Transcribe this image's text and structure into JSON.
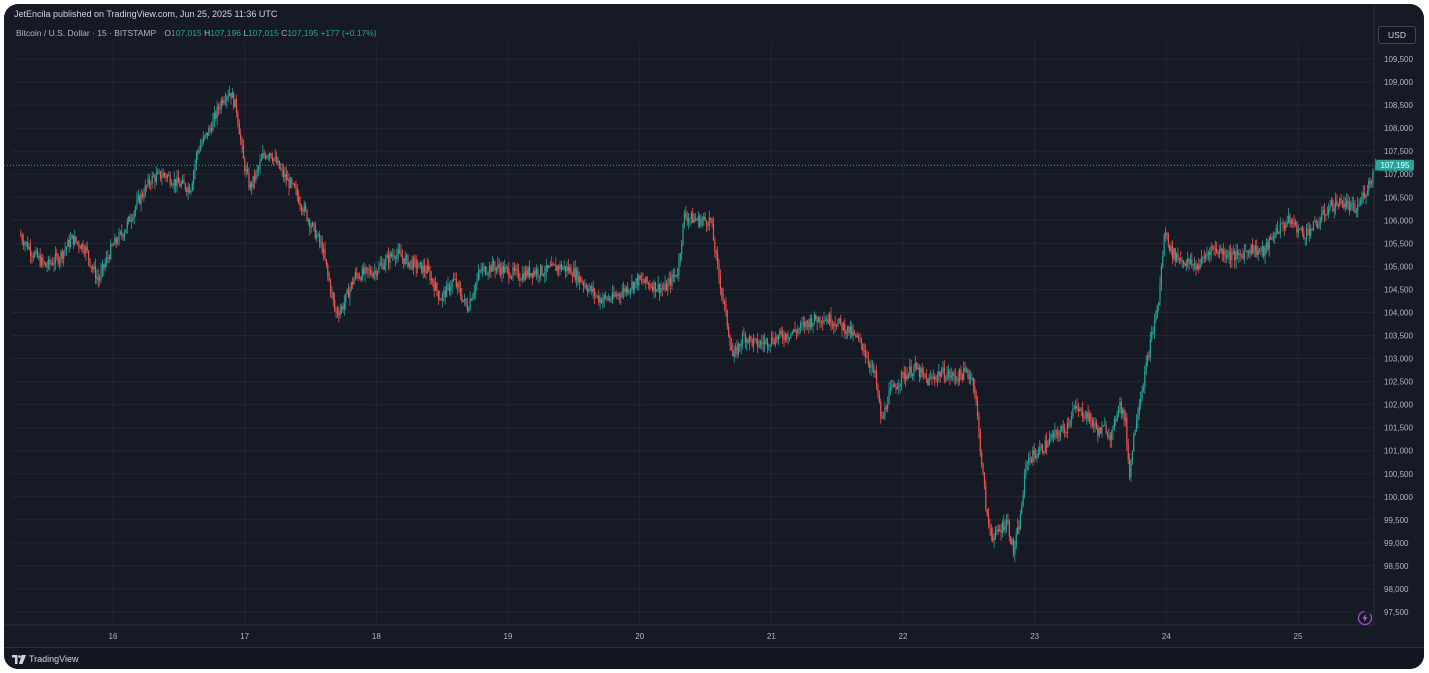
{
  "header": {
    "published_caption": "JetEncila published on TradingView.com, Jun 25, 2025 11:36 UTC"
  },
  "symbol_bar": {
    "symbol": "Bitcoin / U.S. Dollar · 15 · BITSTAMP",
    "open_label": "O",
    "open_value": "107,015",
    "high_label": "H",
    "high_value": "107,196",
    "low_label": "L",
    "low_value": "107,015",
    "close_label": "C",
    "close_value": "107,195",
    "change": "+177 (+0.17%)"
  },
  "currency_button": "USD",
  "last_price_label": "107,195",
  "brand": "TradingView",
  "colors": {
    "background": "#161a25",
    "up": "#26a69a",
    "down": "#ef5350",
    "grid": "#232733",
    "axis_text": "#b2b5be"
  },
  "icons": [
    "tradingview-logo-icon",
    "lightning-icon"
  ],
  "chart_data": {
    "type": "candlestick",
    "title": "Bitcoin / U.S. Dollar · 15 · BITSTAMP",
    "x_ticks": [
      "16",
      "17",
      "18",
      "19",
      "20",
      "21",
      "22",
      "23",
      "24",
      "25"
    ],
    "y_ticks": [
      "97,500",
      "98,000",
      "98,500",
      "99,000",
      "99,500",
      "100,000",
      "100,500",
      "101,000",
      "101,500",
      "102,000",
      "102,500",
      "103,000",
      "103,500",
      "104,000",
      "104,500",
      "105,000",
      "105,500",
      "106,000",
      "106,500",
      "107,000",
      "107,500",
      "108,000",
      "108,500",
      "109,000",
      "109,500"
    ],
    "ylim": [
      97300,
      109800
    ],
    "xlim": [
      15.3,
      25.6
    ],
    "last_price": 107195,
    "grid": true,
    "price_path": [
      [
        15.3,
        105700
      ],
      [
        15.4,
        105300
      ],
      [
        15.5,
        105000
      ],
      [
        15.6,
        105200
      ],
      [
        15.7,
        105600
      ],
      [
        15.8,
        105400
      ],
      [
        15.85,
        105000
      ],
      [
        15.9,
        104700
      ],
      [
        16.0,
        105400
      ],
      [
        16.1,
        105800
      ],
      [
        16.2,
        106400
      ],
      [
        16.3,
        106900
      ],
      [
        16.4,
        107000
      ],
      [
        16.5,
        106800
      ],
      [
        16.6,
        106700
      ],
      [
        16.65,
        107500
      ],
      [
        16.75,
        108000
      ],
      [
        16.85,
        108700
      ],
      [
        16.9,
        108800
      ],
      [
        16.95,
        108400
      ],
      [
        17.0,
        107300
      ],
      [
        17.05,
        106700
      ],
      [
        17.1,
        107000
      ],
      [
        17.15,
        107400
      ],
      [
        17.2,
        107500
      ],
      [
        17.3,
        107000
      ],
      [
        17.4,
        106600
      ],
      [
        17.5,
        106000
      ],
      [
        17.6,
        105400
      ],
      [
        17.7,
        104000
      ],
      [
        17.75,
        104100
      ],
      [
        17.85,
        104800
      ],
      [
        18.0,
        104900
      ],
      [
        18.15,
        105300
      ],
      [
        18.25,
        105100
      ],
      [
        18.4,
        104900
      ],
      [
        18.5,
        104300
      ],
      [
        18.6,
        104700
      ],
      [
        18.7,
        104100
      ],
      [
        18.8,
        104900
      ],
      [
        18.9,
        105000
      ],
      [
        19.0,
        104900
      ],
      [
        19.1,
        104800
      ],
      [
        19.2,
        104900
      ],
      [
        19.3,
        104900
      ],
      [
        19.4,
        105000
      ],
      [
        19.5,
        104900
      ],
      [
        19.6,
        104600
      ],
      [
        19.7,
        104300
      ],
      [
        19.8,
        104300
      ],
      [
        19.9,
        104500
      ],
      [
        20.0,
        104700
      ],
      [
        20.1,
        104600
      ],
      [
        20.2,
        104500
      ],
      [
        20.3,
        104900
      ],
      [
        20.35,
        106100
      ],
      [
        20.45,
        106000
      ],
      [
        20.55,
        106000
      ],
      [
        20.6,
        105000
      ],
      [
        20.65,
        104200
      ],
      [
        20.72,
        103000
      ],
      [
        20.8,
        103500
      ],
      [
        20.9,
        103300
      ],
      [
        21.0,
        103400
      ],
      [
        21.1,
        103500
      ],
      [
        21.2,
        103600
      ],
      [
        21.3,
        103800
      ],
      [
        21.4,
        103900
      ],
      [
        21.5,
        103800
      ],
      [
        21.6,
        103600
      ],
      [
        21.7,
        103300
      ],
      [
        21.8,
        102600
      ],
      [
        21.85,
        101600
      ],
      [
        21.9,
        102200
      ],
      [
        22.0,
        102600
      ],
      [
        22.1,
        102800
      ],
      [
        22.2,
        102500
      ],
      [
        22.3,
        102700
      ],
      [
        22.4,
        102600
      ],
      [
        22.5,
        102700
      ],
      [
        22.55,
        102500
      ],
      [
        22.6,
        101000
      ],
      [
        22.65,
        99500
      ],
      [
        22.7,
        99100
      ],
      [
        22.8,
        99500
      ],
      [
        22.85,
        98800
      ],
      [
        22.9,
        99500
      ],
      [
        22.95,
        100800
      ],
      [
        23.05,
        101000
      ],
      [
        23.15,
        101300
      ],
      [
        23.25,
        101500
      ],
      [
        23.3,
        101900
      ],
      [
        23.4,
        101800
      ],
      [
        23.5,
        101400
      ],
      [
        23.55,
        101500
      ],
      [
        23.6,
        101300
      ],
      [
        23.65,
        102100
      ],
      [
        23.7,
        101600
      ],
      [
        23.73,
        100500
      ],
      [
        23.78,
        101700
      ],
      [
        23.85,
        102700
      ],
      [
        23.9,
        103500
      ],
      [
        23.95,
        104200
      ],
      [
        24.0,
        105800
      ],
      [
        24.05,
        105300
      ],
      [
        24.15,
        105100
      ],
      [
        24.25,
        105000
      ],
      [
        24.35,
        105400
      ],
      [
        24.45,
        105300
      ],
      [
        24.55,
        105200
      ],
      [
        24.65,
        105400
      ],
      [
        24.75,
        105300
      ],
      [
        24.85,
        105800
      ],
      [
        24.95,
        106000
      ],
      [
        25.05,
        105700
      ],
      [
        25.15,
        105900
      ],
      [
        25.25,
        106300
      ],
      [
        25.35,
        106400
      ],
      [
        25.45,
        106200
      ],
      [
        25.55,
        106800
      ],
      [
        25.6,
        107195
      ]
    ]
  }
}
